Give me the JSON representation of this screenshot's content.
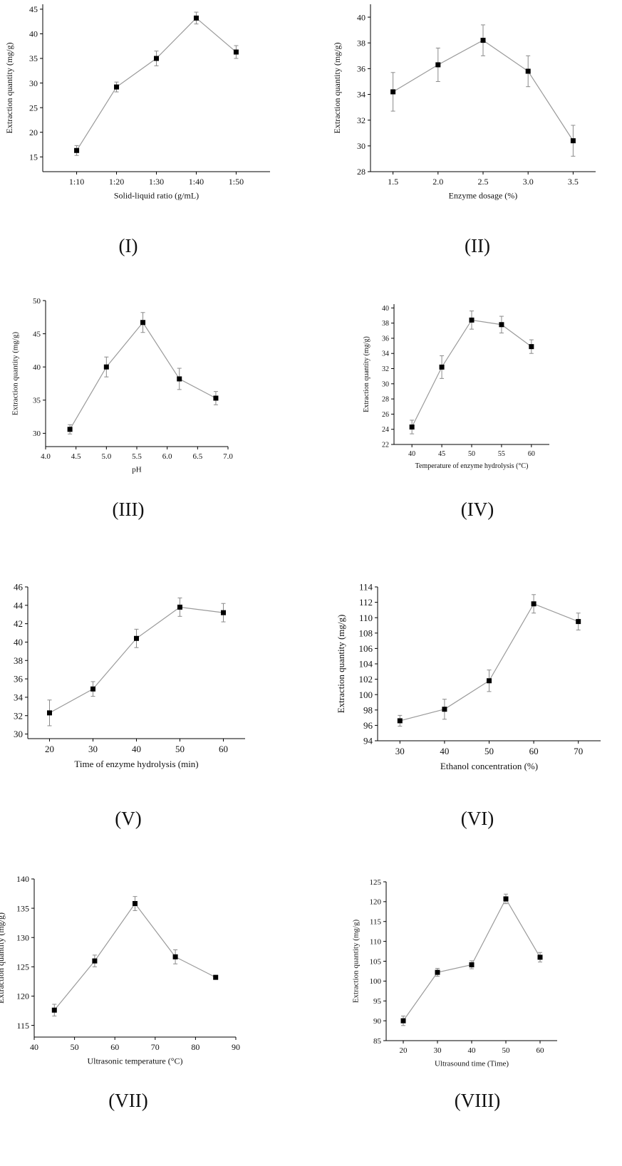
{
  "chart_data": [
    {
      "type": "line",
      "panel_label": "(I)",
      "xlabel": "Solid-liquid ratio (g/mL)",
      "ylabel": "Extraction quantity (mg/g)",
      "categories": [
        "1:10",
        "1:20",
        "1:30",
        "1:40",
        "1:50"
      ],
      "ylim": [
        12,
        46
      ],
      "yticks": [
        15,
        20,
        25,
        30,
        35,
        40,
        45
      ],
      "series": [
        {
          "values": [
            16.3,
            29.2,
            35.0,
            43.2,
            36.3
          ],
          "errors": [
            1.0,
            1.0,
            1.5,
            1.2,
            1.3
          ]
        }
      ]
    },
    {
      "type": "line",
      "panel_label": "(II)",
      "xlabel": "Enzyme dosage (%)",
      "ylabel": "Extraction quantity (mg/g)",
      "x": [
        1.5,
        2.0,
        2.5,
        3.0,
        3.5
      ],
      "xlim": [
        1.25,
        3.75
      ],
      "xticks": [
        1.5,
        2.0,
        2.5,
        3.0,
        3.5
      ],
      "xtick_labels": [
        "1.5",
        "2.0",
        "2.5",
        "3.0",
        "3.5"
      ],
      "ylim": [
        28,
        41
      ],
      "yticks": [
        28,
        30,
        32,
        34,
        36,
        38,
        40
      ],
      "series": [
        {
          "values": [
            34.2,
            36.3,
            38.2,
            35.8,
            30.4
          ],
          "errors": [
            1.5,
            1.3,
            1.2,
            1.2,
            1.2
          ]
        }
      ]
    },
    {
      "type": "line",
      "panel_label": "(III)",
      "xlabel": "pH",
      "ylabel": "Extraction quantity (mg/g)",
      "x": [
        4.4,
        5.0,
        5.6,
        6.2,
        6.8
      ],
      "xlim": [
        4.0,
        7.0
      ],
      "xticks": [
        4.0,
        4.5,
        5.0,
        5.5,
        6.0,
        6.5,
        7.0
      ],
      "xtick_labels": [
        "4.0",
        "4.5",
        "5.0",
        "5.5",
        "6.0",
        "6.5",
        "7.0"
      ],
      "ylim": [
        28,
        50
      ],
      "yticks": [
        30,
        35,
        40,
        45,
        50
      ],
      "series": [
        {
          "values": [
            30.6,
            40.0,
            46.7,
            38.2,
            35.3
          ],
          "errors": [
            0.7,
            1.5,
            1.5,
            1.6,
            1.0
          ]
        }
      ]
    },
    {
      "type": "line",
      "panel_label": "(IV)",
      "xlabel": "Temperature of enzyme hydrolysis (°C)",
      "ylabel": "Extraction quantity (mg/g)",
      "x": [
        40,
        45,
        50,
        55,
        60
      ],
      "xlim": [
        37,
        63
      ],
      "xticks": [
        40,
        45,
        50,
        55,
        60
      ],
      "xtick_labels": [
        "40",
        "45",
        "50",
        "55",
        "60"
      ],
      "ylim": [
        22,
        40.5
      ],
      "yticks": [
        22,
        24,
        26,
        28,
        30,
        32,
        34,
        36,
        38,
        40
      ],
      "series": [
        {
          "values": [
            24.3,
            32.2,
            38.4,
            37.8,
            34.9
          ],
          "errors": [
            0.9,
            1.5,
            1.2,
            1.1,
            0.9
          ]
        }
      ]
    },
    {
      "type": "line",
      "panel_label": "(V)",
      "xlabel": "Time of enzyme hydrolysis (min)",
      "ylabel": "Extraction quantity (mg/g)",
      "x": [
        20,
        30,
        40,
        50,
        60
      ],
      "xlim": [
        15,
        65
      ],
      "xticks": [
        20,
        30,
        40,
        50,
        60
      ],
      "xtick_labels": [
        "20",
        "30",
        "40",
        "50",
        "60"
      ],
      "ylim": [
        29.5,
        46
      ],
      "yticks": [
        30,
        32,
        34,
        36,
        38,
        40,
        42,
        44,
        46
      ],
      "series": [
        {
          "values": [
            32.3,
            34.9,
            40.4,
            43.8,
            43.2
          ],
          "errors": [
            1.4,
            0.8,
            1.0,
            1.0,
            1.0
          ]
        }
      ]
    },
    {
      "type": "line",
      "panel_label": "(VI)",
      "xlabel": "Ethanol concentration (%)",
      "ylabel": "Extraction quantity (mg/g)",
      "x": [
        30,
        40,
        50,
        60,
        70
      ],
      "xlim": [
        25,
        75
      ],
      "xticks": [
        30,
        40,
        50,
        60,
        70
      ],
      "xtick_labels": [
        "30",
        "40",
        "50",
        "60",
        "70"
      ],
      "ylim": [
        94,
        114
      ],
      "yticks": [
        94,
        96,
        98,
        100,
        102,
        104,
        106,
        108,
        110,
        112,
        114
      ],
      "series": [
        {
          "values": [
            96.6,
            98.1,
            101.8,
            111.8,
            109.5
          ],
          "errors": [
            0.7,
            1.3,
            1.4,
            1.2,
            1.1
          ]
        }
      ]
    },
    {
      "type": "line",
      "panel_label": "(VII)",
      "xlabel": "Ultrasonic temperature (°C)",
      "ylabel": "Extraction quantity (mg/g)",
      "x": [
        45,
        55,
        65,
        75,
        85
      ],
      "xlim": [
        40,
        90
      ],
      "xticks": [
        40,
        50,
        60,
        70,
        80,
        90
      ],
      "xtick_labels": [
        "40",
        "50",
        "60",
        "70",
        "80",
        "90"
      ],
      "ylim": [
        113,
        140
      ],
      "yticks": [
        115,
        120,
        125,
        130,
        135,
        140
      ],
      "series": [
        {
          "values": [
            117.6,
            126.0,
            135.8,
            126.7,
            123.2
          ],
          "errors": [
            1.0,
            1.0,
            1.2,
            1.2,
            0.3
          ]
        }
      ]
    },
    {
      "type": "line",
      "panel_label": "(VIII)",
      "xlabel": "Ultrasound time (Time)",
      "ylabel": "Extraction quantity (mg/g)",
      "x": [
        20,
        30,
        40,
        50,
        60
      ],
      "xlim": [
        15,
        65
      ],
      "xticks": [
        20,
        30,
        40,
        50,
        60
      ],
      "xtick_labels": [
        "20",
        "30",
        "40",
        "50",
        "60"
      ],
      "ylim": [
        85,
        125
      ],
      "yticks": [
        85,
        90,
        95,
        100,
        105,
        110,
        115,
        120,
        125
      ],
      "series": [
        {
          "values": [
            90.0,
            102.2,
            104.1,
            120.7,
            106.0
          ],
          "errors": [
            1.2,
            1.0,
            1.0,
            1.2,
            1.2
          ]
        }
      ]
    }
  ],
  "style": {
    "line_color": "#9a9a9a",
    "marker_color": "#000000",
    "axis_color": "#000000",
    "error_bar_color": "#8a8a8a"
  }
}
